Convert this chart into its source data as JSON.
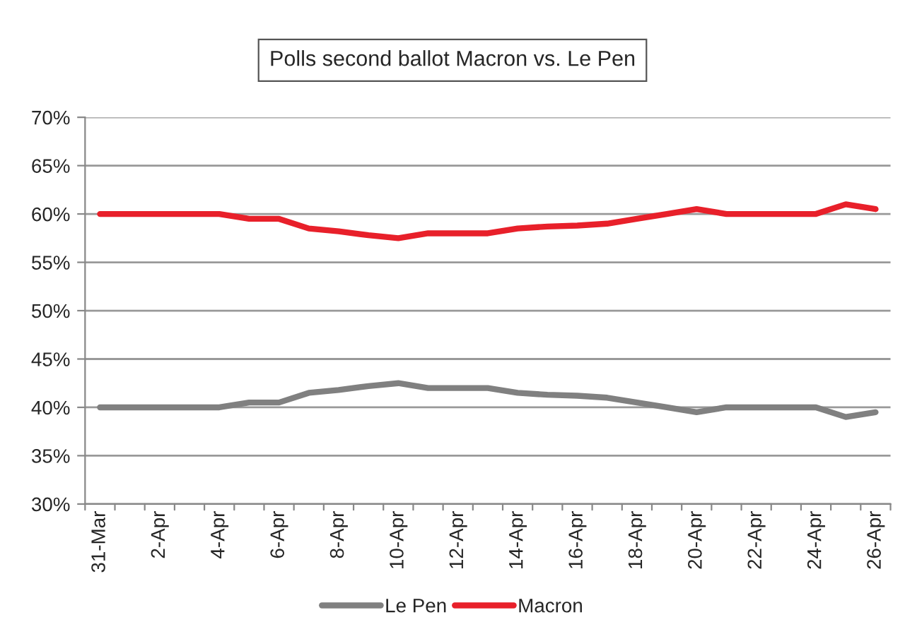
{
  "chart_data": {
    "type": "line",
    "title": "Polls second ballot Macron vs. Le Pen",
    "categories": [
      "31-Mar",
      null,
      "2-Apr",
      null,
      "4-Apr",
      null,
      "6-Apr",
      null,
      "8-Apr",
      null,
      "10-Apr",
      null,
      "12-Apr",
      null,
      "14-Apr",
      null,
      "16-Apr",
      null,
      "18-Apr",
      null,
      "20-Apr",
      null,
      "22-Apr",
      null,
      "24-Apr",
      null,
      "26-Apr"
    ],
    "series": [
      {
        "name": "Le Pen",
        "color": "#808080",
        "values": [
          40,
          40,
          40,
          40,
          40,
          40.5,
          40.5,
          41.5,
          41.8,
          42.2,
          42.5,
          42,
          42,
          42,
          41.5,
          41.3,
          41.2,
          41,
          40.5,
          40,
          39.5,
          40,
          40,
          40,
          40,
          39,
          39.5
        ]
      },
      {
        "name": "Macron",
        "color": "#e8202a",
        "values": [
          60,
          60,
          60,
          60,
          60,
          59.5,
          59.5,
          58.5,
          58.2,
          57.8,
          57.5,
          58,
          58,
          58,
          58.5,
          58.7,
          58.8,
          59,
          59.5,
          60,
          60.5,
          60,
          60,
          60,
          60,
          61,
          60.5
        ]
      }
    ],
    "ylim": [
      30,
      70
    ],
    "yticks": [
      {
        "value": 30,
        "label": "30%"
      },
      {
        "value": 35,
        "label": "35%"
      },
      {
        "value": 40,
        "label": "40%"
      },
      {
        "value": 45,
        "label": "45%"
      },
      {
        "value": 50,
        "label": "50%"
      },
      {
        "value": 55,
        "label": "55%"
      },
      {
        "value": 60,
        "label": "60%"
      },
      {
        "value": 65,
        "label": "65%"
      },
      {
        "value": 70,
        "label": "70%"
      }
    ],
    "grid": "y",
    "legend": "bottom",
    "line_style": "solid",
    "marker": "none"
  }
}
